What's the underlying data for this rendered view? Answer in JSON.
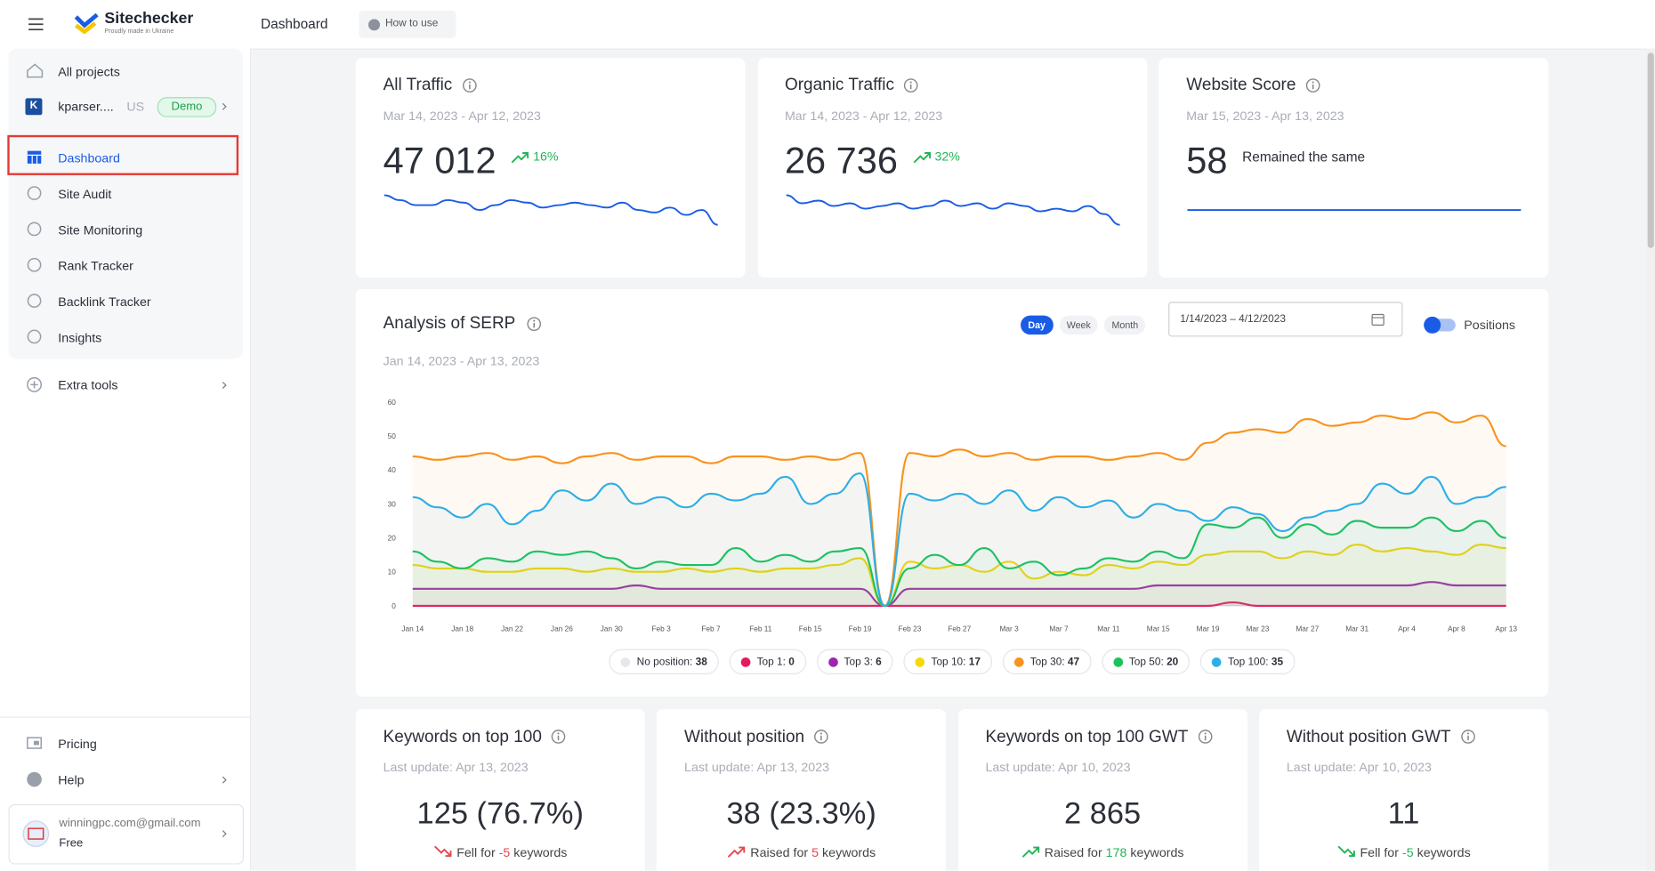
{
  "header": {
    "brand": "Sitechecker",
    "tagline": "Proudly made in Ukraine",
    "page": "Dashboard",
    "help": "How to use"
  },
  "sidebar": {
    "all_projects": "All projects",
    "project": {
      "initial": "K",
      "name": "kparser....",
      "country": "US",
      "badge": "Demo"
    },
    "nav": [
      "Dashboard",
      "Site Audit",
      "Site Monitoring",
      "Rank Tracker",
      "Backlink Tracker",
      "Insights"
    ],
    "active": "Dashboard",
    "extra": "Extra tools",
    "bottom": [
      "Pricing",
      "Help"
    ],
    "account": {
      "email": "winningpc.com@gmail.com",
      "plan": "Free"
    }
  },
  "summary_cards": [
    {
      "title": "All Traffic",
      "dates": "Mar 14, 2023 - Apr 12, 2023",
      "value": "47 012",
      "change": "16%",
      "sparkline": [
        42,
        40,
        38,
        38,
        40,
        39,
        36,
        38,
        40,
        39,
        37,
        38,
        39,
        38,
        37,
        39,
        36,
        35,
        37,
        34,
        36,
        30
      ]
    },
    {
      "title": "Organic Traffic",
      "dates": "Mar 14, 2023 - Apr 12, 2023",
      "value": "26 736",
      "change": "32%",
      "sparkline": [
        38,
        35,
        36,
        34,
        35,
        33,
        34,
        35,
        33,
        34,
        36,
        34,
        35,
        33,
        35,
        34,
        32,
        33,
        32,
        34,
        31,
        27
      ]
    },
    {
      "title": "Website Score",
      "dates": "Mar 15, 2023 - Apr 13, 2023",
      "value": 58,
      "note": "Remained the same",
      "sparkline": [
        58,
        58,
        58,
        58,
        58,
        58,
        58,
        58,
        58,
        58
      ]
    }
  ],
  "serp": {
    "title": "Analysis of SERP",
    "dates": "Jan 14, 2023 - Apr 13, 2023",
    "periods": [
      "Day",
      "Week",
      "Month"
    ],
    "active_period": "Day",
    "range": "1/14/2023 – 4/12/2023",
    "toggle": "Positions"
  },
  "chart_data": {
    "type": "line",
    "categories": [
      "Jan 14",
      null,
      "Jan 18",
      null,
      "Jan 22",
      null,
      "Jan 26",
      null,
      "Jan 30",
      null,
      "Feb 3",
      null,
      "Feb 7",
      null,
      "Feb 11",
      null,
      "Feb 15",
      null,
      "Feb 19",
      null,
      "Feb 23",
      null,
      "Feb 27",
      null,
      "Mar 3",
      null,
      "Mar 7",
      null,
      "Mar 11",
      null,
      "Mar 15",
      null,
      "Mar 19",
      null,
      "Mar 23",
      null,
      "Mar 27",
      null,
      "Mar 31",
      null,
      "Apr 4",
      null,
      "Apr 8",
      null,
      "Apr 13"
    ],
    "ylim": [
      0,
      60
    ],
    "yticks": [
      0,
      10,
      20,
      30,
      40,
      50,
      60
    ],
    "no_position": {
      "name": "No position",
      "count": 38,
      "color": "#e5e7eb"
    },
    "series": [
      {
        "name": "Top 1",
        "count": 0,
        "color": "#e5195e",
        "values": [
          0,
          0,
          0,
          0,
          0,
          0,
          0,
          0,
          0,
          0,
          0,
          0,
          0,
          0,
          0,
          0,
          0,
          0,
          0,
          0,
          0,
          0,
          0,
          0,
          0,
          0,
          0,
          0,
          0,
          0,
          0,
          0,
          0,
          1,
          0,
          0,
          0,
          0,
          0,
          0,
          0,
          0,
          0,
          0,
          0
        ]
      },
      {
        "name": "Top 3",
        "count": 6,
        "color": "#9b27af",
        "values": [
          5,
          5,
          5,
          5,
          5,
          5,
          5,
          5,
          5,
          6,
          5,
          5,
          5,
          5,
          5,
          5,
          5,
          5,
          5,
          0,
          5,
          5,
          5,
          5,
          5,
          5,
          5,
          5,
          5,
          5,
          6,
          6,
          6,
          6,
          6,
          6,
          6,
          6,
          6,
          6,
          6,
          7,
          6,
          6,
          6
        ]
      },
      {
        "name": "Top 10",
        "count": 17,
        "color": "#f5d90a",
        "values": [
          12,
          11,
          11,
          10,
          10,
          11,
          11,
          10,
          11,
          10,
          10,
          11,
          10,
          11,
          10,
          11,
          11,
          12,
          14,
          0,
          13,
          11,
          12,
          10,
          13,
          8,
          10,
          9,
          12,
          11,
          13,
          12,
          15,
          16,
          16,
          14,
          16,
          15,
          18,
          16,
          17,
          16,
          15,
          18,
          17
        ]
      },
      {
        "name": "Top 30",
        "count": 47,
        "color": "#f7931e",
        "values": [
          44,
          43,
          44,
          45,
          43,
          44,
          42,
          44,
          45,
          43,
          44,
          44,
          42,
          44,
          44,
          43,
          44,
          43,
          45,
          0,
          45,
          44,
          46,
          44,
          45,
          43,
          44,
          44,
          43,
          44,
          45,
          43,
          48,
          51,
          52,
          51,
          55,
          53,
          54,
          56,
          55,
          57,
          54,
          56,
          47
        ]
      },
      {
        "name": "Top 50",
        "count": 20,
        "color": "#1ec25b",
        "values": [
          16,
          13,
          11,
          14,
          13,
          16,
          15,
          16,
          14,
          11,
          13,
          12,
          12,
          17,
          13,
          15,
          13,
          16,
          17,
          0,
          11,
          15,
          12,
          17,
          11,
          13,
          9,
          11,
          14,
          13,
          16,
          14,
          24,
          23,
          26,
          20,
          24,
          21,
          25,
          23,
          23,
          26,
          22,
          25,
          20
        ]
      },
      {
        "name": "Top 100",
        "count": 35,
        "color": "#2eaee6",
        "values": [
          32,
          29,
          26,
          30,
          24,
          28,
          34,
          31,
          36,
          30,
          32,
          29,
          33,
          31,
          33,
          38,
          30,
          33,
          39,
          0,
          33,
          31,
          33,
          30,
          34,
          28,
          32,
          29,
          31,
          26,
          30,
          28,
          25,
          29,
          27,
          22,
          26,
          28,
          30,
          36,
          33,
          38,
          30,
          32,
          35
        ]
      }
    ]
  },
  "keyword_cards": [
    {
      "title": "Keywords on top 100",
      "updated": "Last update: Apr 13, 2023",
      "value": "125 (76.7%)",
      "change": {
        "text": "Fell for",
        "amount": "-5",
        "unit": "keywords",
        "direction": "down",
        "color": "#e5484d"
      }
    },
    {
      "title": "Without position",
      "updated": "Last update: Apr 13, 2023",
      "value": "38 (23.3%)",
      "change": {
        "text": "Raised for",
        "amount": "5",
        "unit": "keywords",
        "direction": "up",
        "color": "#e5484d"
      }
    },
    {
      "title": "Keywords on top 100 GWT",
      "updated": "Last update: Apr 10, 2023",
      "value": "2 865",
      "change": {
        "text": "Raised for",
        "amount": "178",
        "unit": "keywords",
        "direction": "up",
        "color": "#22b455"
      }
    },
    {
      "title": "Without position GWT",
      "updated": "Last update: Apr 10, 2023",
      "value": "11",
      "change": {
        "text": "Fell for",
        "amount": "-5",
        "unit": "keywords",
        "direction": "down",
        "color": "#22b455"
      }
    }
  ]
}
